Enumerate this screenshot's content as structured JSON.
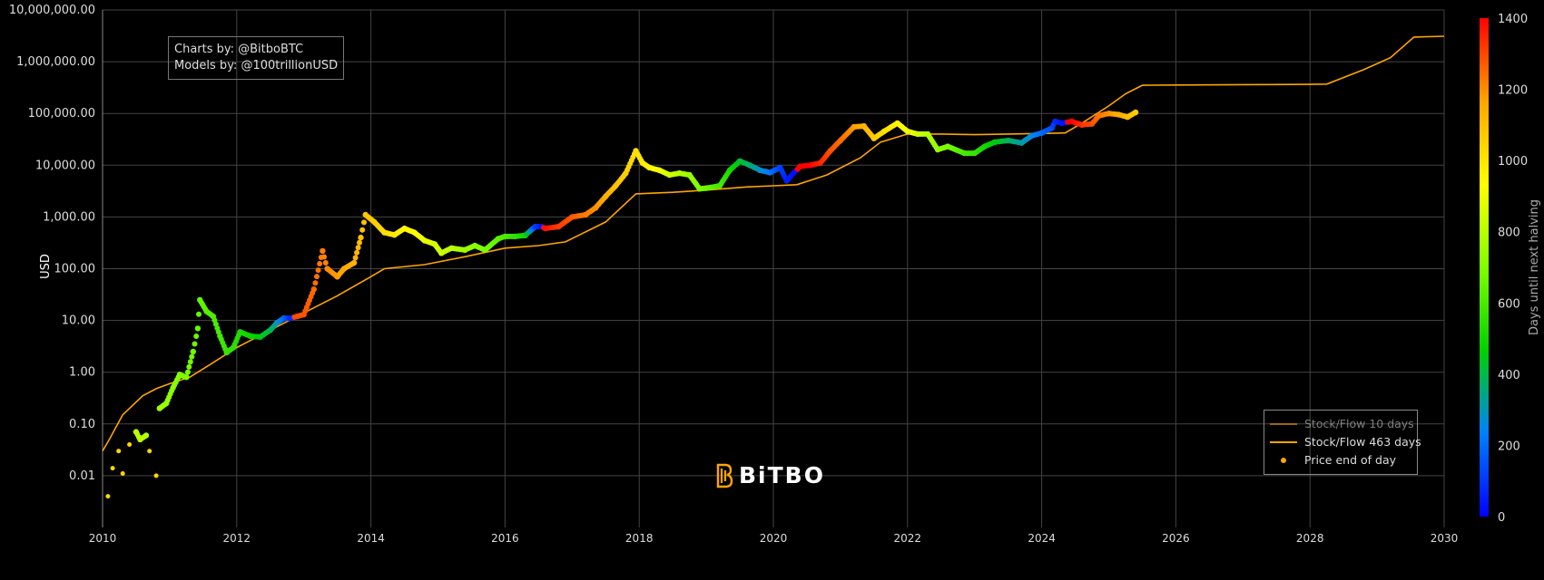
{
  "credits": {
    "line1": "Charts by: @BitboBTC",
    "line2": "Models by: @100trillionUSD"
  },
  "logo": {
    "text": "BiTBO",
    "color": "#ffa500"
  },
  "legend": {
    "items": [
      {
        "label": "Stock/Flow 10 days",
        "kind": "line",
        "color": "#ffa500",
        "dimmed": true
      },
      {
        "label": "Stock/Flow 463 days",
        "kind": "line",
        "color": "#ffa500",
        "dimmed": false
      },
      {
        "label": "Price end of day",
        "kind": "marker",
        "color": "#ffa500",
        "dimmed": false
      }
    ]
  },
  "chart_data": {
    "type": "scatter",
    "title": "",
    "ylabel": "USD",
    "yscale": "log",
    "ylim": [
      0.001,
      10000000
    ],
    "xlim": [
      2010,
      2030
    ],
    "x_ticks": [
      2010,
      2012,
      2014,
      2016,
      2018,
      2020,
      2022,
      2024,
      2026,
      2028,
      2030
    ],
    "y_ticks": [
      0.01,
      0.1,
      1,
      10,
      100,
      1000,
      10000,
      100000,
      1000000,
      10000000
    ],
    "y_tick_labels": [
      "0.01",
      "0.10",
      "1.00",
      "10.00",
      "100.00",
      "1,000.00",
      "10,000.00",
      "100,000.00",
      "1,000,000.00",
      "10,000,000.00"
    ],
    "grid": true,
    "legend_position": "bottom-right",
    "colorbar": {
      "title": "Days until next halving",
      "min": 0,
      "max": 1400,
      "ticks": [
        0,
        200,
        400,
        600,
        800,
        1000,
        1200,
        1400
      ],
      "colors": [
        "#0000ff",
        "#0080ff",
        "#00d000",
        "#80ff00",
        "#ffff00",
        "#ffa500",
        "#ff0000"
      ]
    },
    "series": [
      {
        "name": "Stock/Flow 463 days",
        "kind": "line",
        "color": "#ffa500",
        "x": [
          2010.0,
          2010.1,
          2010.3,
          2010.6,
          2010.8,
          2011.0,
          2011.3,
          2011.6,
          2012.0,
          2012.5,
          2012.9,
          2013.5,
          2014.0,
          2014.2,
          2014.8,
          2015.4,
          2016.0,
          2016.5,
          2016.9,
          2017.5,
          2017.95,
          2018.5,
          2019.0,
          2019.6,
          2020.0,
          2020.35,
          2020.8,
          2021.3,
          2021.6,
          2022.0,
          2022.5,
          2023.0,
          2023.5,
          2024.0,
          2024.35,
          2024.6,
          2025.0,
          2025.25,
          2025.5,
          2026.0,
          2027.0,
          2028.0,
          2028.25,
          2028.8,
          2029.2,
          2029.55,
          2030.0
        ],
        "y": [
          0.03,
          0.05,
          0.15,
          0.35,
          0.48,
          0.6,
          0.8,
          1.4,
          3.0,
          6.5,
          12,
          30,
          70,
          100,
          120,
          170,
          250,
          280,
          330,
          800,
          2800,
          3000,
          3300,
          3800,
          4000,
          4200,
          6500,
          14000,
          28000,
          40000,
          40000,
          39000,
          40000,
          41000,
          42000,
          65000,
          140000,
          240000,
          350000,
          355000,
          360000,
          365000,
          370000,
          700000,
          1200000,
          3000000,
          3100000
        ]
      },
      {
        "name": "Price end of day",
        "kind": "markers",
        "points": [
          [
            2010.08,
            0.004,
            900
          ],
          [
            2010.15,
            0.014,
            880
          ],
          [
            2010.24,
            0.03,
            860
          ],
          [
            2010.3,
            0.011,
            850
          ],
          [
            2010.4,
            0.04,
            830
          ],
          [
            2010.5,
            0.07,
            820
          ],
          [
            2010.56,
            0.05,
            810
          ],
          [
            2010.65,
            0.06,
            790
          ],
          [
            2010.7,
            0.03,
            780
          ],
          [
            2010.8,
            0.01,
            770
          ],
          [
            2010.85,
            0.2,
            760
          ],
          [
            2010.95,
            0.25,
            740
          ],
          [
            2011.05,
            0.5,
            720
          ],
          [
            2011.15,
            0.9,
            700
          ],
          [
            2011.25,
            0.8,
            690
          ],
          [
            2011.35,
            2.5,
            670
          ],
          [
            2011.42,
            7.0,
            655
          ],
          [
            2011.45,
            25,
            650
          ],
          [
            2011.55,
            15,
            630
          ],
          [
            2011.65,
            12,
            610
          ],
          [
            2011.75,
            5.0,
            590
          ],
          [
            2011.85,
            2.4,
            570
          ],
          [
            2011.95,
            3.0,
            550
          ],
          [
            2012.05,
            6.0,
            520
          ],
          [
            2012.2,
            5.0,
            490
          ],
          [
            2012.35,
            4.8,
            460
          ],
          [
            2012.5,
            6.5,
            400
          ],
          [
            2012.6,
            9.0,
            300
          ],
          [
            2012.7,
            11,
            200
          ],
          [
            2012.8,
            11,
            80
          ],
          [
            2012.9,
            12,
            1300
          ],
          [
            2013.0,
            13,
            1280
          ],
          [
            2013.15,
            40,
            1250
          ],
          [
            2013.28,
            220,
            1220
          ],
          [
            2013.35,
            100,
            1210
          ],
          [
            2013.5,
            70,
            1180
          ],
          [
            2013.6,
            100,
            1160
          ],
          [
            2013.75,
            130,
            1130
          ],
          [
            2013.85,
            400,
            1100
          ],
          [
            2013.92,
            1100,
            1090
          ],
          [
            2014.05,
            800,
            1060
          ],
          [
            2014.2,
            500,
            1020
          ],
          [
            2014.35,
            450,
            990
          ],
          [
            2014.5,
            600,
            960
          ],
          [
            2014.65,
            500,
            930
          ],
          [
            2014.8,
            350,
            900
          ],
          [
            2014.95,
            300,
            860
          ],
          [
            2015.05,
            200,
            840
          ],
          [
            2015.2,
            250,
            810
          ],
          [
            2015.4,
            230,
            760
          ],
          [
            2015.55,
            280,
            720
          ],
          [
            2015.7,
            230,
            690
          ],
          [
            2015.9,
            380,
            640
          ],
          [
            2016.0,
            420,
            610
          ],
          [
            2016.15,
            420,
            560
          ],
          [
            2016.3,
            440,
            500
          ],
          [
            2016.45,
            650,
            120
          ],
          [
            2016.55,
            650,
            40
          ],
          [
            2016.6,
            600,
            1380
          ],
          [
            2016.8,
            650,
            1320
          ],
          [
            2017.0,
            1000,
            1280
          ],
          [
            2017.2,
            1100,
            1230
          ],
          [
            2017.35,
            1500,
            1200
          ],
          [
            2017.5,
            2500,
            1150
          ],
          [
            2017.65,
            4000,
            1100
          ],
          [
            2017.8,
            7000,
            1060
          ],
          [
            2017.95,
            19000,
            1010
          ],
          [
            2018.05,
            11000,
            990
          ],
          [
            2018.15,
            9000,
            960
          ],
          [
            2018.3,
            8000,
            910
          ],
          [
            2018.45,
            6500,
            860
          ],
          [
            2018.6,
            7000,
            800
          ],
          [
            2018.75,
            6500,
            750
          ],
          [
            2018.9,
            3500,
            700
          ],
          [
            2019.0,
            3600,
            670
          ],
          [
            2019.2,
            4000,
            600
          ],
          [
            2019.35,
            8000,
            520
          ],
          [
            2019.5,
            12000,
            430
          ],
          [
            2019.65,
            10000,
            370
          ],
          [
            2019.8,
            8000,
            290
          ],
          [
            2019.95,
            7200,
            220
          ],
          [
            2020.1,
            9000,
            120
          ],
          [
            2020.2,
            5000,
            60
          ],
          [
            2020.3,
            7000,
            30
          ],
          [
            2020.4,
            9500,
            1440
          ],
          [
            2020.55,
            10000,
            1400
          ],
          [
            2020.7,
            11000,
            1350
          ],
          [
            2020.85,
            19000,
            1290
          ],
          [
            2021.0,
            30000,
            1250
          ],
          [
            2021.2,
            55000,
            1190
          ],
          [
            2021.35,
            57000,
            1130
          ],
          [
            2021.5,
            33000,
            1070
          ],
          [
            2021.65,
            45000,
            1020
          ],
          [
            2021.85,
            65000,
            960
          ],
          [
            2022.0,
            45000,
            910
          ],
          [
            2022.15,
            40000,
            860
          ],
          [
            2022.3,
            40000,
            800
          ],
          [
            2022.45,
            20000,
            740
          ],
          [
            2022.6,
            23000,
            690
          ],
          [
            2022.85,
            17000,
            600
          ],
          [
            2023.0,
            17000,
            570
          ],
          [
            2023.15,
            23000,
            510
          ],
          [
            2023.3,
            28000,
            460
          ],
          [
            2023.5,
            30000,
            390
          ],
          [
            2023.7,
            27000,
            320
          ],
          [
            2023.85,
            37000,
            260
          ],
          [
            2024.0,
            42000,
            200
          ],
          [
            2024.15,
            52000,
            140
          ],
          [
            2024.2,
            70000,
            80
          ],
          [
            2024.3,
            65000,
            40
          ],
          [
            2024.45,
            70000,
            1400
          ],
          [
            2024.6,
            60000,
            1340
          ],
          [
            2024.75,
            63000,
            1290
          ],
          [
            2024.85,
            90000,
            1240
          ],
          [
            2025.0,
            100000,
            1200
          ],
          [
            2025.15,
            95000,
            1150
          ],
          [
            2025.28,
            85000,
            1110
          ],
          [
            2025.4,
            105000,
            1070
          ]
        ]
      }
    ]
  }
}
